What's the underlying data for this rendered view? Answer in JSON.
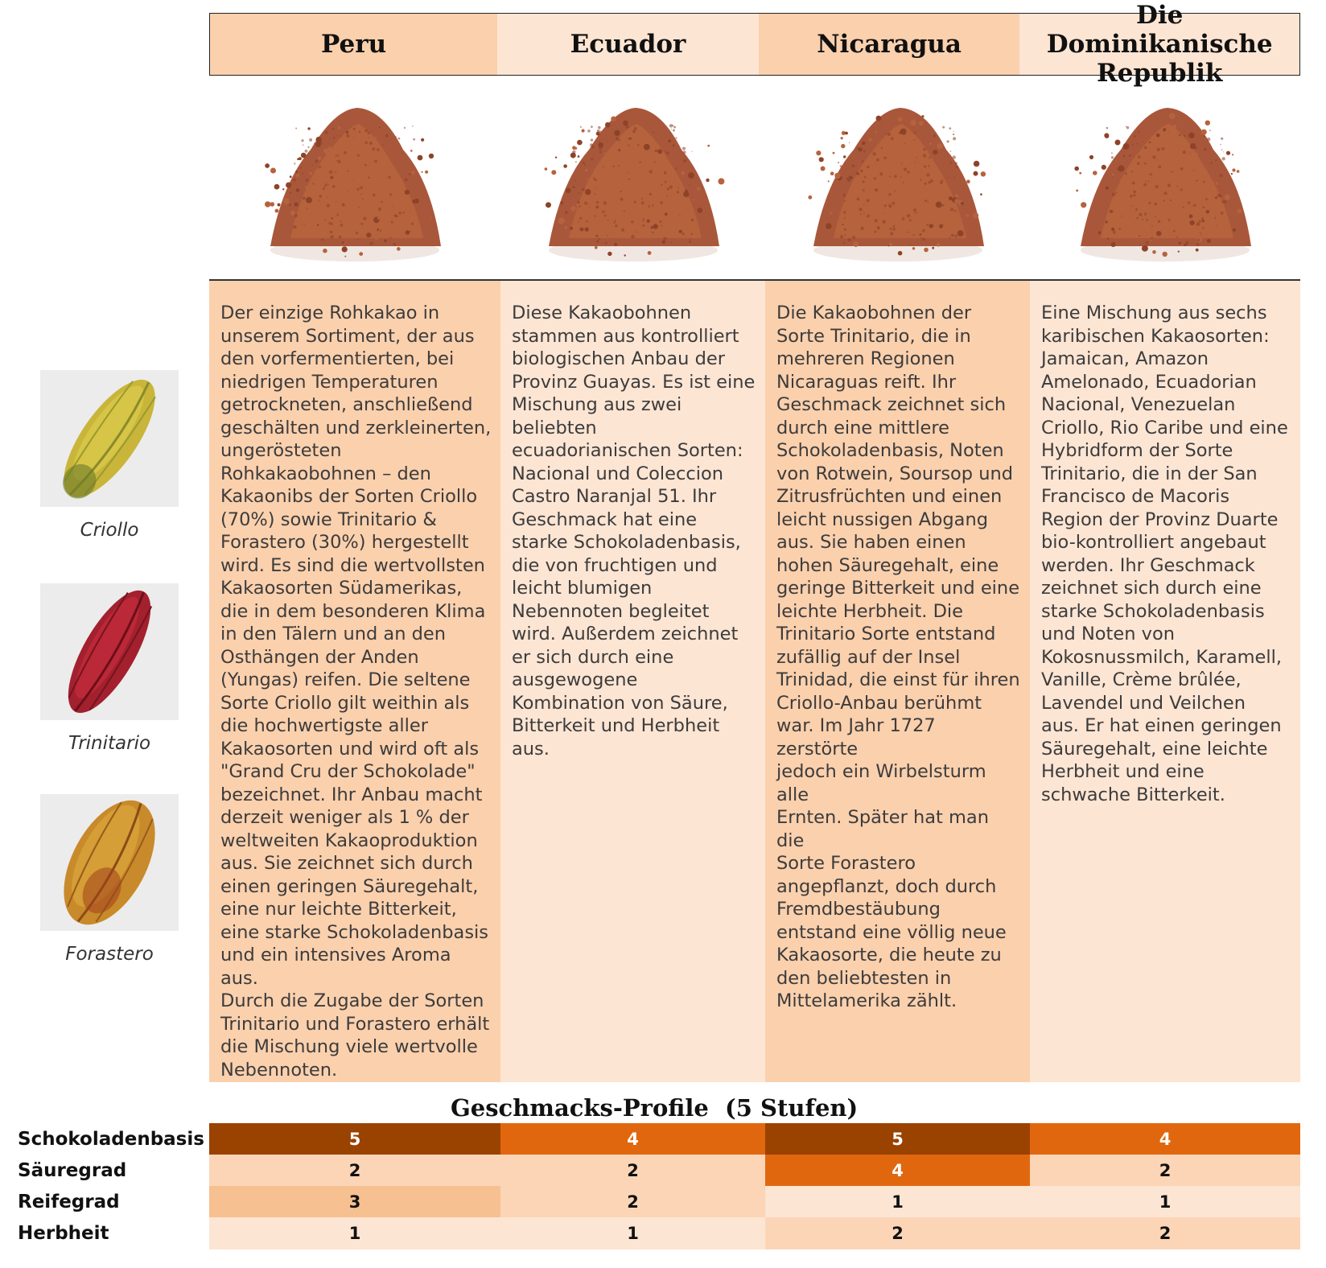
{
  "columns": [
    {
      "name": "Peru"
    },
    {
      "name": "Ecuador"
    },
    {
      "name": "Nicaragua"
    },
    {
      "name": "Die Dominikanische Republik"
    }
  ],
  "descriptions": [
    "Der einzige Rohkakao in\nunserem Sortiment, der aus\nden vorfermentierten, bei\nniedrigen Temperaturen\ngetrockneten, anschließend\ngeschälten und zerkleinerten,\nungerösteten\nRohkakaobohnen – den\nKakaonibs der Sorten Criollo\n(70%) sowie Trinitario &\nForastero (30%) hergestellt\nwird. Es sind die wertvollsten\nKakaosorten Südamerikas,\ndie in dem besonderen Klima\nin den Tälern und an den\nOsthängen der Anden\n(Yungas) reifen. Die seltene\nSorte Criollo gilt weithin als\ndie hochwertigste aller\nKakaosorten und wird oft als\n\"Grand Cru der Schokolade\"\nbezeichnet. Ihr Anbau macht\nderzeit weniger als 1 % der\nweltweiten Kakaoproduktion\naus. Sie zeichnet sich durch\neinen geringen Säuregehalt,\neine nur leichte Bitterkeit,\neine starke Schokoladenbasis\nund ein intensives Aroma aus.\nDurch die Zugabe der Sorten\nTrinitario und Forastero erhält\ndie Mischung viele wertvolle\nNebennoten.",
    "Diese Kakaobohnen\nstammen aus kontrolliert\nbiologischen Anbau der\nProvinz Guayas. Es ist eine\nMischung aus zwei\nbeliebten\necuadorianischen Sorten:\nNacional und Coleccion\nCastro Naranjal 51. Ihr\nGeschmack  hat eine\nstarke Schokoladenbasis,\ndie von fruchtigen und\nleicht blumigen\nNebennoten begleitet\nwird. Außerdem zeichnet\ner sich durch eine\nausgewogene\nKombination von Säure,\nBitterkeit und Herbheit aus.",
    "Die Kakaobohnen der\nSorte Trinitario, die in\nmehreren Regionen\nNicaraguas reift. Ihr\nGeschmack zeichnet sich\ndurch eine mittlere\nSchokoladenbasis, Noten\nvon Rotwein, Soursop und\nZitrusfrüchten und einen\nleicht nussigen Abgang\naus. Sie haben einen\nhohen Säuregehalt, eine\ngeringe Bitterkeit und eine\nleichte Herbheit. Die\nTrinitario Sorte entstand\nzufällig auf der Insel\nTrinidad, die einst für ihren\nCriollo-Anbau berühmt\nwar. Im Jahr 1727 zerstörte\njedoch ein Wirbelsturm alle\nErnten. Später hat man die\nSorte Forastero\nangepflanzt, doch durch\nFremdbestäubung\nentstand eine völlig neue\nKakaosorte, die heute zu\nden beliebtesten in\nMittelamerika zählt.",
    "Eine Mischung aus sechs\nkaribischen Kakaosorten:\nJamaican, Amazon\nAmelonado, Ecuadorian\nNacional, Venezuelan\nCriollo, Rio Caribe und eine\nHybridform der Sorte\nTrinitario, die in der San\nFrancisco de Macoris\nRegion der Provinz Duarte\nbio-kontrolliert angebaut\nwerden. Ihr Geschmack\nzeichnet sich durch eine\nstarke Schokoladenbasis\nund Noten von\nKokosnussmilch, Karamell,\nVanille, Crème brûlée,\nLavendel und Veilchen\naus. Er hat einen geringen\nSäuregehalt, eine leichte\nHerbheit und eine\nschwache Bitterkeit."
  ],
  "pods": [
    {
      "label": "Criollo",
      "color": "#c9b53a"
    },
    {
      "label": "Trinitario",
      "color": "#a3202e"
    },
    {
      "label": "Forastero",
      "color": "#c88a2a"
    }
  ],
  "profile": {
    "title": "Geschmacks-Profile  (5 Stufen)",
    "rows": [
      {
        "label": "Schokoladenbasis",
        "values": [
          "5",
          "4",
          "5",
          "4"
        ]
      },
      {
        "label": "Säuregrad",
        "values": [
          "2",
          "2",
          "4",
          "2"
        ]
      },
      {
        "label": "Reifegrad",
        "values": [
          "3",
          "2",
          "1",
          "1"
        ]
      },
      {
        "label": "Herbheit",
        "values": [
          "1",
          "1",
          "2",
          "2"
        ]
      }
    ]
  },
  "colors": {
    "header_bg_a": "#fbd0ad",
    "header_bg_b": "#fde5d3",
    "level_1": "#fde5d3",
    "level_2": "#fbd5b6",
    "level_3": "#f7c090",
    "level_4": "#e1670e",
    "level_5": "#9a4200",
    "cocoa_powder": "#a9573a"
  }
}
